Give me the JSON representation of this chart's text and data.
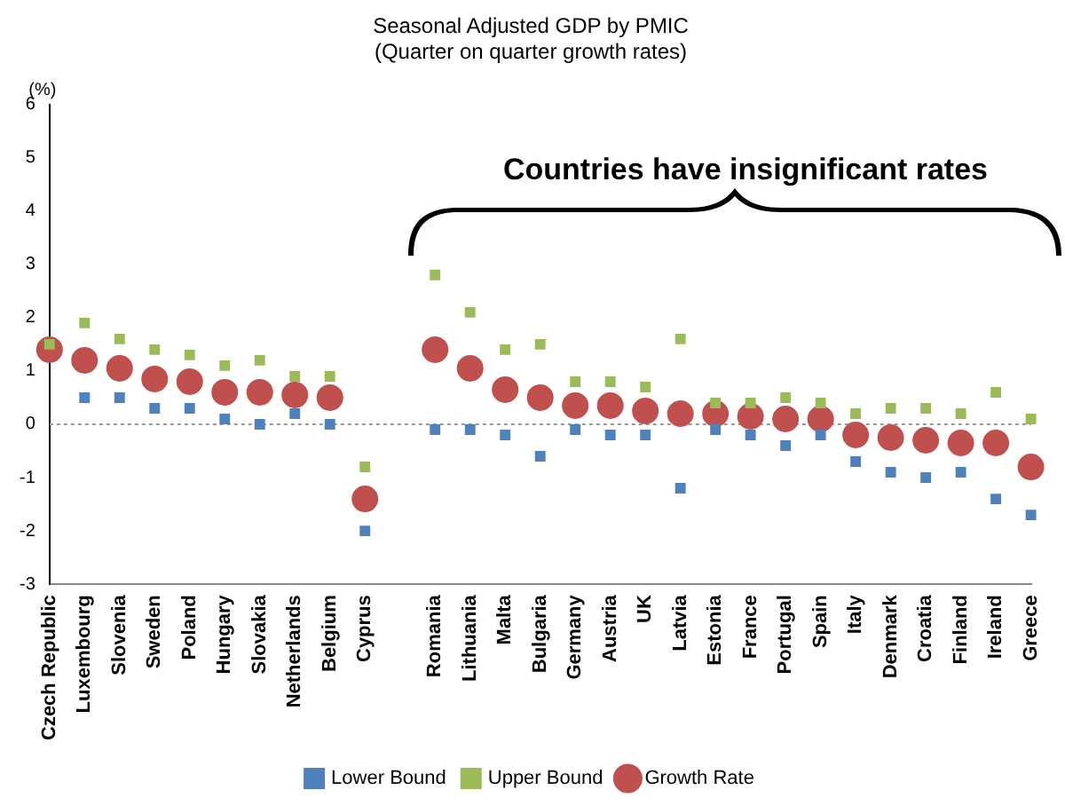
{
  "chart_data": {
    "type": "scatter",
    "title": [
      "Seasonal Adjusted GDP by PMIC",
      "(Quarter on quarter growth rates)"
    ],
    "ylabel": "(%)",
    "annotations": [
      "Countries have insignificant rates"
    ],
    "categories": [
      "Czech Republic",
      "Luxembourg",
      "Slovenia",
      "Sweden",
      "Poland",
      "Hungary",
      "Slovakia",
      "Netherlands",
      "Belgium",
      "Cyprus",
      null,
      "Romania",
      "Lithuania",
      "Malta",
      "Bulgaria",
      "Germany",
      "Austria",
      "UK",
      "Latvia",
      "Estonia",
      "France",
      "Portugal",
      "Spain",
      "Italy",
      "Denmark",
      "Croatia",
      "Finland",
      "Ireland",
      "Greece"
    ],
    "series": [
      {
        "name": "Lower Bound",
        "color": "#4f81bd",
        "marker": "square",
        "values": [
          null,
          0.5,
          0.5,
          0.3,
          0.3,
          0.1,
          0.0,
          0.2,
          0.0,
          -2.0,
          null,
          -0.1,
          -0.1,
          -0.2,
          -0.6,
          -0.1,
          -0.2,
          -0.2,
          -1.2,
          -0.1,
          -0.2,
          -0.4,
          -0.2,
          -0.7,
          -0.9,
          -1.0,
          -0.9,
          -1.4,
          -1.7
        ]
      },
      {
        "name": "Growth Rate",
        "color": "#c0504d",
        "marker": "circle",
        "values": [
          1.4,
          1.2,
          1.05,
          0.85,
          0.8,
          0.6,
          0.6,
          0.55,
          0.5,
          -1.4,
          null,
          1.4,
          1.05,
          0.65,
          0.5,
          0.35,
          0.35,
          0.25,
          0.2,
          0.2,
          0.15,
          0.1,
          0.1,
          -0.2,
          -0.25,
          -0.3,
          -0.35,
          -0.35,
          -0.8
        ]
      },
      {
        "name": "Upper Bound",
        "color": "#9bbb59",
        "marker": "square",
        "values": [
          1.5,
          1.9,
          1.6,
          1.4,
          1.3,
          1.1,
          1.2,
          0.9,
          0.9,
          -0.8,
          null,
          2.8,
          2.1,
          1.4,
          1.5,
          0.8,
          0.8,
          0.7,
          1.6,
          0.4,
          0.4,
          0.5,
          0.4,
          0.2,
          0.3,
          0.3,
          0.2,
          0.6,
          0.1
        ]
      }
    ],
    "ylim": [
      -3,
      6
    ],
    "yticks": [
      -3,
      -2,
      -1,
      0,
      1,
      2,
      3,
      4,
      5,
      6
    ],
    "grid": false,
    "legend": "bottom",
    "ref_lines": [
      {
        "axis": "y",
        "value": 0,
        "color": "#999999",
        "line_style": "dotted"
      }
    ]
  }
}
